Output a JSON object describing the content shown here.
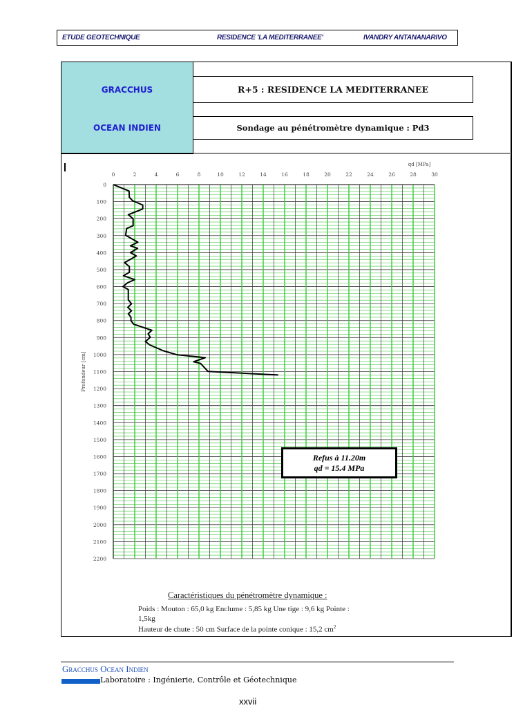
{
  "header": {
    "left": "ETUDE GEOTECHNIQUE",
    "center": "RESIDENCE 'LA MEDITERRANEE'",
    "right": "IVANDRY ANTANANARIVO"
  },
  "title_block": {
    "company_line1": "GRACCHUS",
    "company_line2": "OCEAN INDIEN",
    "project": "R+5 :  RESIDENCE LA MEDITERRANEE",
    "test": "Sondage au pénétromètre dynamique : Pd3",
    "company_color": "#1f1fd0",
    "cell_color": "#a3dfe0"
  },
  "chart_data": {
    "type": "line",
    "xlabel": "qd [MPa]",
    "ylabel": "Profondeur [cm]",
    "xlim": [
      0,
      30
    ],
    "ylim": [
      0,
      2200
    ],
    "y_inverted": true,
    "x_axis_position": "top",
    "x_ticks": [
      "0",
      "2",
      "4",
      "6",
      "8",
      "10",
      "12",
      "14",
      "16",
      "18",
      "20",
      "22",
      "24",
      "26",
      "28",
      "30"
    ],
    "y_ticks": [
      "0",
      "100",
      "200",
      "300",
      "400",
      "500",
      "600",
      "700",
      "800",
      "900",
      "1000",
      "1100",
      "1200",
      "1300",
      "1400",
      "1500",
      "1600",
      "1700",
      "1800",
      "1900",
      "2000",
      "2100",
      "2200"
    ],
    "grid": true,
    "grid_colors": {
      "major": "#333333",
      "minor": "#3cc63c"
    },
    "series": [
      {
        "color": "#000000",
        "points": [
          [
            0,
            0
          ],
          [
            1.47,
            38
          ],
          [
            1.5,
            75
          ],
          [
            1.8,
            95
          ],
          [
            2.75,
            120
          ],
          [
            2.75,
            143
          ],
          [
            1.4,
            177
          ],
          [
            1.85,
            201
          ],
          [
            1.85,
            242
          ],
          [
            1.25,
            258
          ],
          [
            1.15,
            298
          ],
          [
            2.3,
            339
          ],
          [
            1.6,
            360
          ],
          [
            2.27,
            375
          ],
          [
            1.6,
            400
          ],
          [
            2.15,
            420
          ],
          [
            1.05,
            459
          ],
          [
            1.5,
            482
          ],
          [
            1.5,
            516
          ],
          [
            0.95,
            536
          ],
          [
            2.0,
            559
          ],
          [
            1.35,
            577
          ],
          [
            0.9,
            600
          ],
          [
            1.4,
            617
          ],
          [
            1.4,
            678
          ],
          [
            1.7,
            701
          ],
          [
            1.35,
            722
          ],
          [
            1.7,
            742
          ],
          [
            1.4,
            760
          ],
          [
            1.65,
            780
          ],
          [
            1.65,
            800
          ],
          [
            1.9,
            821
          ],
          [
            3.6,
            857
          ],
          [
            3.25,
            878
          ],
          [
            3.45,
            898
          ],
          [
            3.0,
            923
          ],
          [
            3.4,
            943
          ],
          [
            4.65,
            977
          ],
          [
            5.95,
            1001
          ],
          [
            8.6,
            1018
          ],
          [
            7.5,
            1042
          ],
          [
            8.15,
            1052
          ],
          [
            8.85,
            1099
          ],
          [
            15.4,
            1120
          ]
        ]
      }
    ],
    "annotation": {
      "line1": "Refus à 11.20m",
      "line2": "qd = 15.4 MPa"
    }
  },
  "characteristics": {
    "title": "Caractéristiques du pénétromètre dynamique :",
    "line1": "Poids : Mouton : 65,0 kg   Enclume : 5,85 kg   Une tige : 9,6 kg   Pointe :",
    "line2": "1,5kg",
    "line3": "Hauteur de chute : 50 cm     Surface de la pointe conique : 15,2 cm",
    "sup": "2"
  },
  "footer": {
    "company": "Gracchus  Ocean  Indien",
    "lab": "Laboratoire : Ingénierie, Contrôle et Géotechnique",
    "page": "xxvii",
    "accent": "#1060c8"
  }
}
